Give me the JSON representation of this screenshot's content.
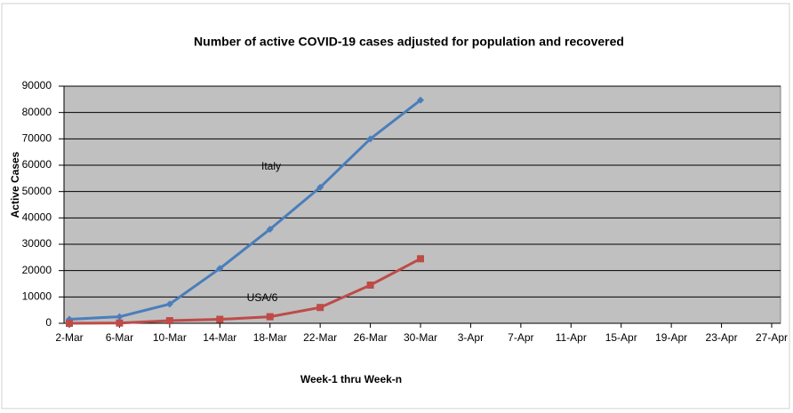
{
  "chart_data": {
    "type": "line",
    "title": "Number of active COVID-19 cases adjusted for population and recovered",
    "x_label": "Week-1 thru Week-n",
    "y_label": "Active Cases",
    "categories": [
      "2-Mar",
      "6-Mar",
      "10-Mar",
      "14-Mar",
      "18-Mar",
      "22-Mar",
      "26-Mar",
      "30-Mar",
      "3-Apr",
      "7-Apr",
      "11-Apr",
      "15-Apr",
      "19-Apr",
      "23-Apr",
      "27-Apr"
    ],
    "series": [
      {
        "name": "Italy",
        "color": "#4a7ebb",
        "marker": "diamond",
        "values": [
          1500,
          2500,
          7300,
          20800,
          35700,
          51600,
          70000,
          84700,
          null,
          null,
          null,
          null,
          null,
          null,
          null
        ]
      },
      {
        "name": "USA/6",
        "color": "#be4b48",
        "marker": "square",
        "values": [
          0,
          100,
          1000,
          1500,
          2500,
          6000,
          14500,
          24500,
          null,
          null,
          null,
          null,
          null,
          null,
          null
        ]
      }
    ],
    "annotations": [
      "Italy",
      "USA/6"
    ],
    "ylim": [
      0,
      90000
    ],
    "yticks": [
      0,
      10000,
      20000,
      30000,
      40000,
      50000,
      60000,
      70000,
      80000,
      90000
    ],
    "grid": true,
    "plot_background": "#c0c0c0"
  }
}
